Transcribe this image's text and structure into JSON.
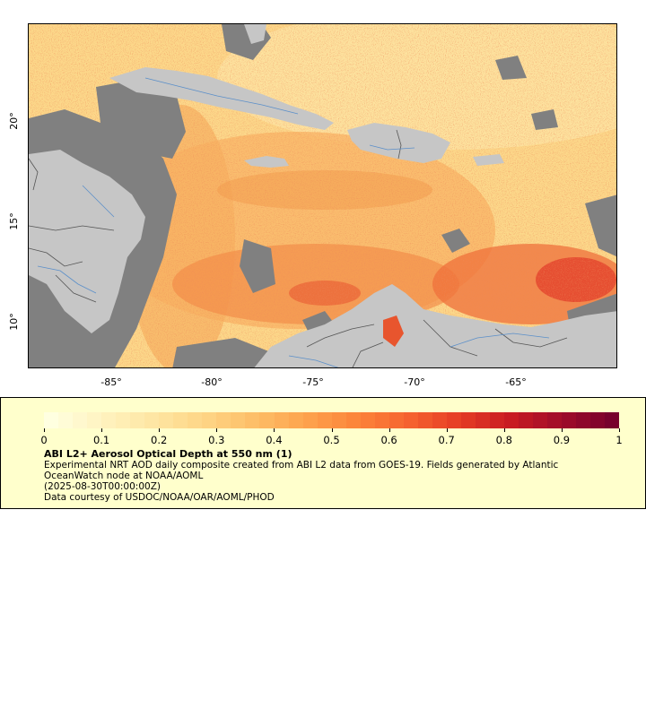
{
  "map": {
    "x_ticks": [
      "-85°",
      "-80°",
      "-75°",
      "-70°",
      "-65°"
    ],
    "y_ticks": [
      "20°",
      "15°",
      "10°"
    ],
    "colors": {
      "land": "#c6c6c6",
      "no_data": "#808080",
      "borders": "#555555",
      "rivers": "#5b8fc9"
    }
  },
  "legend": {
    "colorbar_ticks": [
      "0",
      "0.1",
      "0.2",
      "0.3",
      "0.4",
      "0.5",
      "0.6",
      "0.7",
      "0.8",
      "0.9",
      "1"
    ],
    "colormap": [
      "#ffffe0",
      "#fff3c0",
      "#fee6a3",
      "#fed586",
      "#fdbe67",
      "#fda24d",
      "#fc843a",
      "#f66330",
      "#e53c25",
      "#c91b22",
      "#a00c2a",
      "#77002d"
    ],
    "title": "ABI L2+ Aerosol Optical Depth at 550 nm (1)",
    "description": "Experimental NRT AOD daily composite created from ABI L2 data from GOES-19. Fields generated by Atlantic OceanWatch node at NOAA/AOML",
    "time": "(2025-08-30T00:00:00Z)",
    "credit": "Data courtesy of USDOC/NOAA/OAR/AOML/PHOD"
  }
}
